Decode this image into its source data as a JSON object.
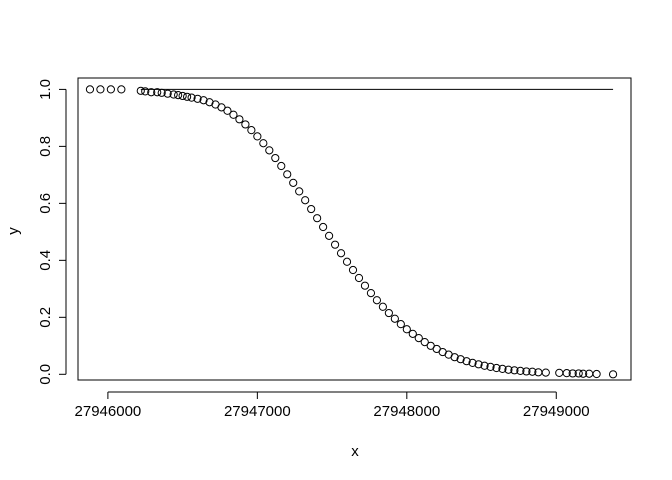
{
  "chart_data": {
    "type": "scatter",
    "xlabel": "x",
    "ylabel": "y",
    "xlim": [
      27945800,
      27949500
    ],
    "ylim": [
      -0.02,
      1.04
    ],
    "xticks": [
      27946000,
      27947000,
      27948000,
      27949000
    ],
    "xtick_labels": [
      "27946000",
      "27947000",
      "27948000",
      "27949000"
    ],
    "yticks": [
      0.0,
      0.2,
      0.4,
      0.6,
      0.8,
      1.0
    ],
    "ytick_labels": [
      "0.0",
      "0.2",
      "0.4",
      "0.6",
      "0.8",
      "1.0"
    ],
    "grid": false,
    "series": [
      {
        "kind": "points",
        "marker": "open-circle",
        "x": [
          27945880,
          27945950,
          27946020,
          27946090,
          27946220,
          27946250,
          27946290,
          27946330,
          27946360,
          27946400,
          27946440,
          27946470,
          27946500,
          27946530,
          27946560,
          27946600,
          27946640,
          27946680,
          27946720,
          27946760,
          27946800,
          27946840,
          27946880,
          27946920,
          27946960,
          27947000,
          27947040,
          27947080,
          27947120,
          27947160,
          27947200,
          27947240,
          27947280,
          27947320,
          27947360,
          27947400,
          27947440,
          27947480,
          27947520,
          27947560,
          27947600,
          27947640,
          27947680,
          27947720,
          27947760,
          27947800,
          27947840,
          27947880,
          27947920,
          27947960,
          27948000,
          27948040,
          27948080,
          27948120,
          27948160,
          27948200,
          27948240,
          27948280,
          27948320,
          27948360,
          27948400,
          27948440,
          27948480,
          27948520,
          27948560,
          27948600,
          27948640,
          27948680,
          27948720,
          27948760,
          27948800,
          27948840,
          27948880,
          27948930,
          27949020,
          27949070,
          27949110,
          27949150,
          27949180,
          27949220,
          27949270,
          27949380
        ],
        "y": [
          1.0,
          1.0,
          1.0,
          1.0,
          0.995,
          0.993,
          0.99,
          0.99,
          0.988,
          0.985,
          0.982,
          0.98,
          0.977,
          0.974,
          0.971,
          0.967,
          0.962,
          0.955,
          0.947,
          0.937,
          0.925,
          0.911,
          0.895,
          0.877,
          0.857,
          0.835,
          0.811,
          0.786,
          0.759,
          0.731,
          0.702,
          0.672,
          0.642,
          0.611,
          0.58,
          0.548,
          0.517,
          0.486,
          0.455,
          0.425,
          0.395,
          0.366,
          0.338,
          0.311,
          0.285,
          0.26,
          0.237,
          0.215,
          0.195,
          0.176,
          0.158,
          0.142,
          0.127,
          0.113,
          0.1,
          0.089,
          0.078,
          0.069,
          0.06,
          0.053,
          0.046,
          0.04,
          0.035,
          0.03,
          0.026,
          0.022,
          0.019,
          0.016,
          0.014,
          0.012,
          0.01,
          0.009,
          0.007,
          0.006,
          0.005,
          0.004,
          0.003,
          0.003,
          0.002,
          0.002,
          0.001,
          0.0
        ]
      },
      {
        "kind": "line",
        "x": [
          27946220,
          27949380
        ],
        "y": [
          1.0,
          1.0
        ]
      }
    ]
  }
}
